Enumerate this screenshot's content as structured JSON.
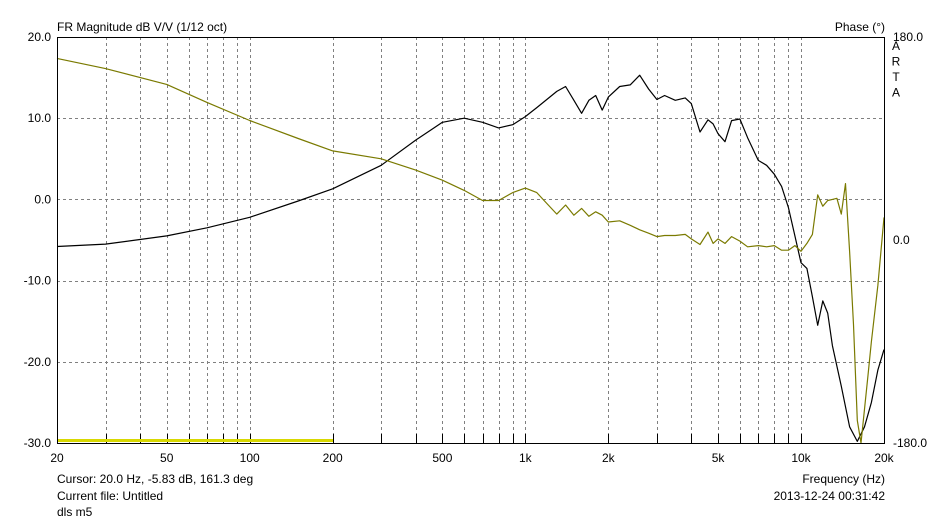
{
  "header": {
    "title": "FR Magnitude dB V/V (1/12 oct)",
    "right_title": "Phase (°)",
    "watermark": "ARTA"
  },
  "footer": {
    "cursor": "Cursor: 20.0 Hz, -5.83 dB, 161.3 deg",
    "current_file": "Current file: Untitled",
    "note": "dls m5",
    "xlabel": "Frequency (Hz)",
    "timestamp": "2013-12-24  00:31:42"
  },
  "colors": {
    "magnitude": "#000000",
    "phase": "#7a7a00",
    "marker": "#d8d800",
    "grid": "#808080"
  },
  "chart_data": {
    "type": "line",
    "title": "FR Magnitude dB V/V (1/12 oct)",
    "xlabel": "Frequency (Hz)",
    "ylabel_left": "FR Magnitude dB V/V",
    "ylabel_right": "Phase (°)",
    "xscale": "log",
    "xlim": [
      20,
      20000
    ],
    "ylim": [
      -30,
      20
    ],
    "y2lim": [
      -180,
      180
    ],
    "grid": true,
    "x_ticks": [
      "20",
      "50",
      "100",
      "200",
      "500",
      "1k",
      "2k",
      "5k",
      "10k",
      "20k"
    ],
    "y_ticks": [
      "20.0",
      "10.0",
      "0.0",
      "-10.0",
      "-20.0",
      "-30.0"
    ],
    "y2_ticks": [
      "180.0",
      "0.0",
      "-180.0"
    ],
    "series": [
      {
        "name": "magnitude",
        "axis": "left",
        "x": [
          20,
          30,
          50,
          70,
          100,
          150,
          200,
          300,
          400,
          500,
          600,
          700,
          800,
          900,
          1000,
          1100,
          1300,
          1400,
          1500,
          1600,
          1700,
          1800,
          1900,
          2000,
          2200,
          2400,
          2600,
          2800,
          3000,
          3200,
          3500,
          3800,
          4000,
          4300,
          4600,
          4800,
          5000,
          5300,
          5600,
          6000,
          6400,
          7000,
          7500,
          8000,
          8500,
          9000,
          9500,
          10000,
          10500,
          11000,
          11500,
          12000,
          12500,
          13000,
          14000,
          15000,
          16000,
          17000,
          18000,
          19000,
          20000
        ],
        "y": [
          -5.8,
          -5.5,
          -4.5,
          -3.5,
          -2.2,
          -0.2,
          1.3,
          4.2,
          7.3,
          9.5,
          10.0,
          9.5,
          8.8,
          9.2,
          10.2,
          11.3,
          13.3,
          13.9,
          12.2,
          10.6,
          12.2,
          12.8,
          11.0,
          12.6,
          13.9,
          14.1,
          15.3,
          13.6,
          12.3,
          12.8,
          12.2,
          12.5,
          11.8,
          8.3,
          9.8,
          9.3,
          8.1,
          7.1,
          9.7,
          9.9,
          7.6,
          4.8,
          4.2,
          3.1,
          1.6,
          -1.0,
          -4.5,
          -7.8,
          -8.5,
          -12.0,
          -15.5,
          -12.5,
          -14.0,
          -18.0,
          -23.0,
          -28.0,
          -29.8,
          -28.0,
          -25.0,
          -21.0,
          -18.5
        ]
      },
      {
        "name": "phase",
        "axis": "right",
        "x": [
          20,
          30,
          50,
          70,
          100,
          150,
          200,
          300,
          400,
          500,
          600,
          700,
          800,
          900,
          1000,
          1100,
          1200,
          1300,
          1400,
          1500,
          1600,
          1700,
          1800,
          1900,
          2000,
          2200,
          2400,
          2600,
          2800,
          3000,
          3200,
          3500,
          3800,
          4000,
          4300,
          4600,
          4800,
          5000,
          5300,
          5600,
          6000,
          6400,
          7000,
          7500,
          8000,
          8500,
          9000,
          9500,
          10000,
          10500,
          11000,
          11500,
          12000,
          12500,
          13000,
          13500,
          14000,
          14500,
          15000,
          15500,
          16000,
          16500,
          17000,
          17500,
          18000,
          19000,
          20000
        ],
        "y": [
          161,
          152,
          138,
          122,
          106,
          90,
          79,
          72,
          62,
          53,
          44,
          35,
          35,
          42,
          46,
          42,
          32,
          23,
          31,
          22,
          28,
          21,
          25,
          22,
          16,
          17,
          13,
          9,
          6,
          3,
          4,
          4,
          5,
          1,
          -4,
          7,
          -3,
          1,
          -3,
          3,
          -1,
          -6,
          -5,
          -6,
          -5,
          -9,
          -9,
          -5,
          -10,
          -3,
          5,
          40,
          30,
          35,
          36,
          37,
          23,
          50,
          -10,
          -75,
          -160,
          -180,
          -150,
          -120,
          -90,
          -40,
          20
        ]
      }
    ],
    "annotations": [
      "dls m5"
    ]
  }
}
